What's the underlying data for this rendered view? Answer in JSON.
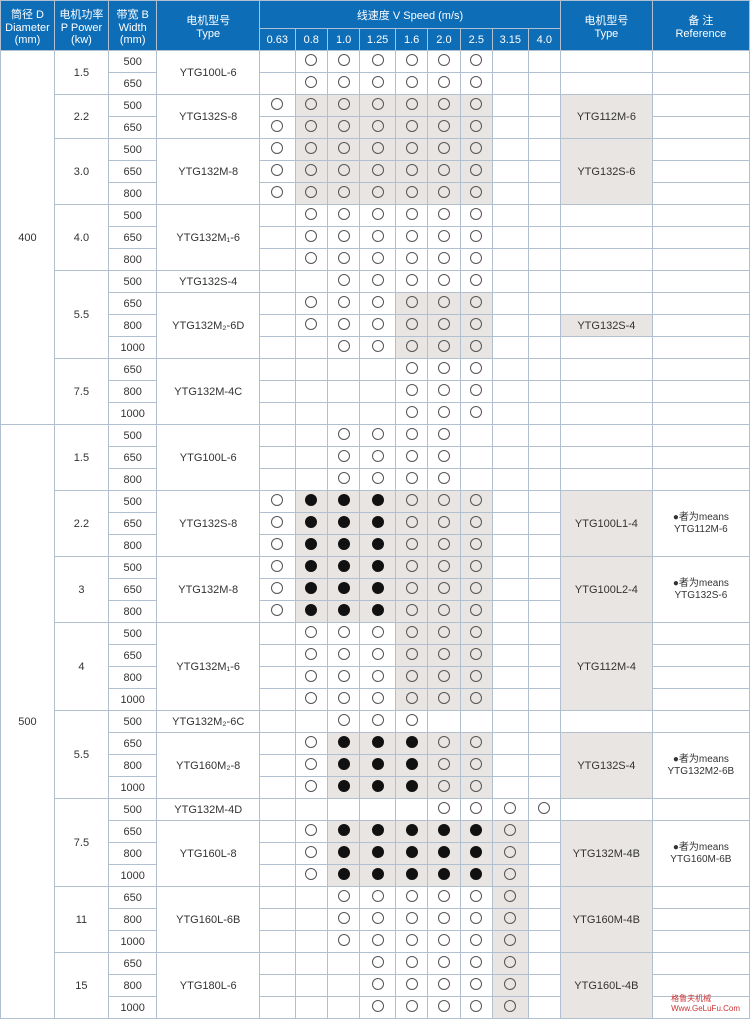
{
  "colors": {
    "header_bg": "#0e6db7",
    "header_fg": "#ffffff",
    "border": "#b0c0d0",
    "shade": "#e8e5e2",
    "fill": "#111111"
  },
  "headers": {
    "diameter": "筒径 D\nDiameter\n(mm)",
    "power": "电机功率\nP Power\n(kw)",
    "width": "带宽 B\nWidth\n(mm)",
    "type1": "电机型号\nType",
    "speed": "线速度    V   Speed  (m/s)",
    "type2": "电机型号\nType",
    "ref": "备  注\nReference"
  },
  "speeds": [
    "0.63",
    "0.8",
    "1.0",
    "1.25",
    "1.6",
    "2.0",
    "2.5",
    "3.15",
    "4.0"
  ],
  "groups": [
    {
      "diameter": "400",
      "rows": [
        {
          "p": "1.5",
          "w": "500",
          "t": "YTG100L-6",
          "tspan": 2,
          "s": [
            0,
            1,
            1,
            1,
            1,
            1,
            1,
            0,
            0
          ]
        },
        {
          "p": "",
          "w": "650",
          "s": [
            0,
            1,
            1,
            1,
            1,
            1,
            1,
            0,
            0
          ]
        },
        {
          "p": "2.2",
          "w": "500",
          "t": "YTG132S-8",
          "tspan": 2,
          "s": [
            1,
            3,
            3,
            3,
            3,
            3,
            3,
            0,
            0
          ],
          "mt": "YTG112M-6",
          "mtspan": 2
        },
        {
          "p": "",
          "w": "650",
          "s": [
            1,
            3,
            3,
            3,
            3,
            3,
            3,
            0,
            0
          ]
        },
        {
          "p": "3.0",
          "w": "500",
          "t": "YTG132M-8",
          "tspan": 3,
          "s": [
            1,
            3,
            3,
            3,
            3,
            3,
            3,
            0,
            0
          ],
          "mt": "YTG132S-6",
          "mtspan": 3
        },
        {
          "p": "",
          "w": "650",
          "s": [
            1,
            3,
            3,
            3,
            3,
            3,
            3,
            0,
            0
          ]
        },
        {
          "p": "",
          "w": "800",
          "s": [
            1,
            3,
            3,
            3,
            3,
            3,
            3,
            0,
            0
          ]
        },
        {
          "p": "4.0",
          "w": "500",
          "t": "YTG132M₁-6",
          "tspan": 3,
          "s": [
            0,
            1,
            1,
            1,
            1,
            1,
            1,
            0,
            0
          ]
        },
        {
          "p": "",
          "w": "650",
          "s": [
            0,
            1,
            1,
            1,
            1,
            1,
            1,
            0,
            0
          ]
        },
        {
          "p": "",
          "w": "800",
          "s": [
            0,
            1,
            1,
            1,
            1,
            1,
            1,
            0,
            0
          ]
        },
        {
          "p": "5.5",
          "w": "500",
          "t": "YTG132S-4",
          "tspan": 1,
          "s": [
            0,
            0,
            1,
            1,
            1,
            1,
            1,
            0,
            0
          ]
        },
        {
          "p": "",
          "w": "650",
          "t": "YTG132M₂-6D",
          "tspan": 3,
          "s": [
            0,
            1,
            1,
            1,
            3,
            3,
            3,
            0,
            0
          ],
          "mt": "YTG132S-4",
          "mtspan": 1,
          "mtoff": 1
        },
        {
          "p": "",
          "w": "800",
          "s": [
            0,
            1,
            1,
            1,
            3,
            3,
            3,
            0,
            0
          ]
        },
        {
          "p": "",
          "w": "1000",
          "s": [
            0,
            0,
            1,
            1,
            3,
            3,
            3,
            0,
            0
          ]
        },
        {
          "p": "7.5",
          "w": "650",
          "t": "YTG132M-4C",
          "tspan": 3,
          "s": [
            0,
            0,
            0,
            0,
            1,
            1,
            1,
            0,
            0
          ]
        },
        {
          "p": "",
          "w": "800",
          "s": [
            0,
            0,
            0,
            0,
            1,
            1,
            1,
            0,
            0
          ]
        },
        {
          "p": "",
          "w": "1000",
          "s": [
            0,
            0,
            0,
            0,
            1,
            1,
            1,
            0,
            0
          ]
        }
      ]
    },
    {
      "diameter": "500",
      "rows": [
        {
          "p": "1.5",
          "w": "500",
          "t": "YTG100L-6",
          "tspan": 3,
          "s": [
            0,
            0,
            1,
            1,
            1,
            1,
            0,
            0,
            0
          ]
        },
        {
          "p": "",
          "w": "650",
          "s": [
            0,
            0,
            1,
            1,
            1,
            1,
            0,
            0,
            0
          ]
        },
        {
          "p": "",
          "w": "800",
          "s": [
            0,
            0,
            1,
            1,
            1,
            1,
            0,
            0,
            0
          ]
        },
        {
          "p": "2.2",
          "w": "500",
          "t": "YTG132S-8",
          "tspan": 3,
          "s": [
            1,
            4,
            4,
            4,
            3,
            3,
            3,
            0,
            0
          ],
          "mt": "YTG100L1-4",
          "mtspan": 3,
          "ref": "●者为means\nYTG112M-6",
          "refspan": 3
        },
        {
          "p": "",
          "w": "650",
          "s": [
            1,
            4,
            4,
            4,
            3,
            3,
            3,
            0,
            0
          ]
        },
        {
          "p": "",
          "w": "800",
          "s": [
            1,
            4,
            4,
            4,
            3,
            3,
            3,
            0,
            0
          ]
        },
        {
          "p": "3",
          "w": "500",
          "t": "YTG132M-8",
          "tspan": 3,
          "s": [
            1,
            4,
            4,
            4,
            3,
            3,
            3,
            0,
            0
          ],
          "mt": "YTG100L2-4",
          "mtspan": 3,
          "ref": "●者为means\nYTG132S-6",
          "refspan": 3
        },
        {
          "p": "",
          "w": "650",
          "s": [
            1,
            4,
            4,
            4,
            3,
            3,
            3,
            0,
            0
          ]
        },
        {
          "p": "",
          "w": "800",
          "s": [
            1,
            4,
            4,
            4,
            3,
            3,
            3,
            0,
            0
          ]
        },
        {
          "p": "4",
          "w": "500",
          "t": "YTG132M₁-6",
          "tspan": 4,
          "s": [
            0,
            1,
            1,
            1,
            3,
            3,
            3,
            0,
            0
          ],
          "mt": "YTG112M-4",
          "mtspan": 4
        },
        {
          "p": "",
          "w": "650",
          "s": [
            0,
            1,
            1,
            1,
            3,
            3,
            3,
            0,
            0
          ]
        },
        {
          "p": "",
          "w": "800",
          "s": [
            0,
            1,
            1,
            1,
            3,
            3,
            3,
            0,
            0
          ]
        },
        {
          "p": "",
          "w": "1000",
          "s": [
            0,
            1,
            1,
            1,
            3,
            3,
            3,
            0,
            0
          ]
        },
        {
          "p": "5.5",
          "w": "500",
          "t": "YTG132M₂-6C",
          "tspan": 1,
          "s": [
            0,
            0,
            1,
            1,
            1,
            0,
            0,
            0,
            0
          ]
        },
        {
          "p": "",
          "w": "650",
          "t": "YTG160M₂-8",
          "tspan": 3,
          "s": [
            0,
            1,
            4,
            4,
            4,
            3,
            3,
            0,
            0
          ],
          "mt": "YTG132S-4",
          "mtspan": 3,
          "ref": "●者为means\nYTG132M2-6B",
          "refspan": 3
        },
        {
          "p": "",
          "w": "800",
          "s": [
            0,
            1,
            4,
            4,
            4,
            3,
            3,
            0,
            0
          ]
        },
        {
          "p": "",
          "w": "1000",
          "s": [
            0,
            1,
            4,
            4,
            4,
            3,
            3,
            0,
            0
          ]
        },
        {
          "p": "7.5",
          "w": "500",
          "t": "YTG132M-4D",
          "tspan": 1,
          "s": [
            0,
            0,
            0,
            0,
            0,
            1,
            1,
            1,
            1
          ]
        },
        {
          "p": "",
          "w": "650",
          "t": "YTG160L-8",
          "tspan": 3,
          "s": [
            0,
            1,
            4,
            4,
            4,
            4,
            4,
            3,
            0
          ],
          "mt": "YTG132M-4B",
          "mtspan": 3,
          "ref": "●者为means\nYTG160M-6B",
          "refspan": 3
        },
        {
          "p": "",
          "w": "800",
          "s": [
            0,
            1,
            4,
            4,
            4,
            4,
            4,
            3,
            0
          ]
        },
        {
          "p": "",
          "w": "1000",
          "s": [
            0,
            1,
            4,
            4,
            4,
            4,
            4,
            3,
            0
          ]
        },
        {
          "p": "11",
          "w": "650",
          "t": "YTG160L-6B",
          "tspan": 3,
          "s": [
            0,
            0,
            1,
            1,
            1,
            1,
            1,
            3,
            0
          ],
          "mt": "YTG160M-4B",
          "mtspan": 3
        },
        {
          "p": "",
          "w": "800",
          "s": [
            0,
            0,
            1,
            1,
            1,
            1,
            1,
            3,
            0
          ]
        },
        {
          "p": "",
          "w": "1000",
          "s": [
            0,
            0,
            1,
            1,
            1,
            1,
            1,
            3,
            0
          ]
        },
        {
          "p": "15",
          "w": "650",
          "t": "YTG180L-6",
          "tspan": 3,
          "s": [
            0,
            0,
            0,
            1,
            1,
            1,
            1,
            3,
            0
          ],
          "mt": "YTG160L-4B",
          "mtspan": 3
        },
        {
          "p": "",
          "w": "800",
          "s": [
            0,
            0,
            0,
            1,
            1,
            1,
            1,
            3,
            0
          ]
        },
        {
          "p": "",
          "w": "1000",
          "s": [
            0,
            0,
            0,
            1,
            1,
            1,
            1,
            3,
            0
          ]
        }
      ]
    }
  ],
  "watermark_lines": [
    "格鲁夫机械",
    "Www.GeLuFu.Com"
  ]
}
